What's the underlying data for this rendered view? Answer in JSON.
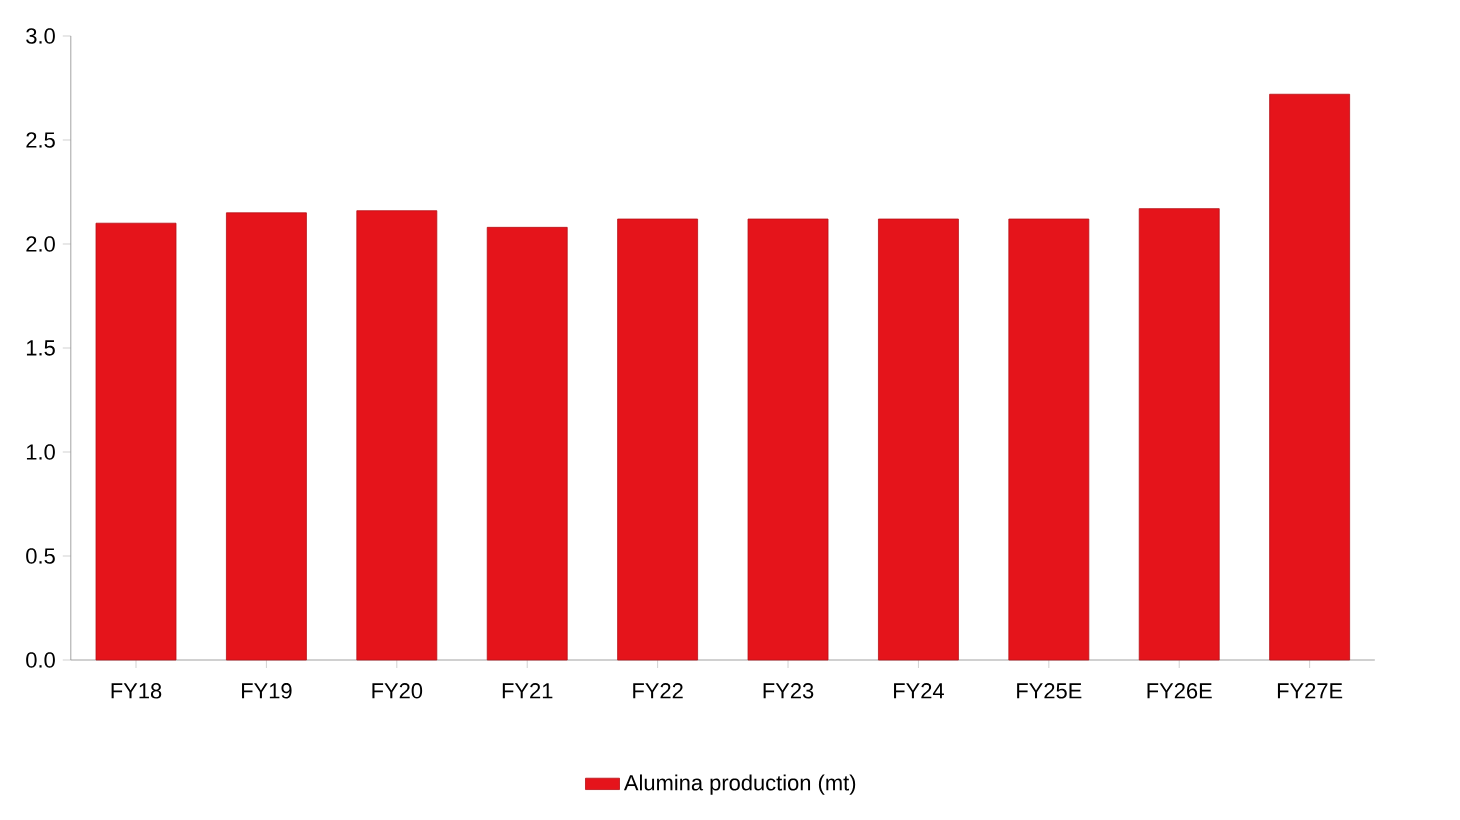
{
  "chart_data": {
    "type": "bar",
    "categories": [
      "FY18",
      "FY19",
      "FY20",
      "FY21",
      "FY22",
      "FY23",
      "FY24",
      "FY25E",
      "FY26E",
      "FY27E"
    ],
    "series": [
      {
        "name": "Alumina production (mt)",
        "color": "#e5141b",
        "values": [
          2.1,
          2.15,
          2.16,
          2.08,
          2.12,
          2.12,
          2.12,
          2.12,
          2.17,
          2.72
        ]
      }
    ],
    "ylim": [
      0,
      3.0
    ],
    "yticks": [
      {
        "value": 0,
        "label": "0.0"
      },
      {
        "value": 0.5,
        "label": "0.5"
      },
      {
        "value": 1.0,
        "label": "1.0"
      },
      {
        "value": 1.5,
        "label": "1.5"
      },
      {
        "value": 2.0,
        "label": "2.0"
      },
      {
        "value": 2.5,
        "label": "2.5"
      },
      {
        "value": 3.0,
        "label": "3.0"
      }
    ],
    "grid": false,
    "legend": "bottom"
  }
}
